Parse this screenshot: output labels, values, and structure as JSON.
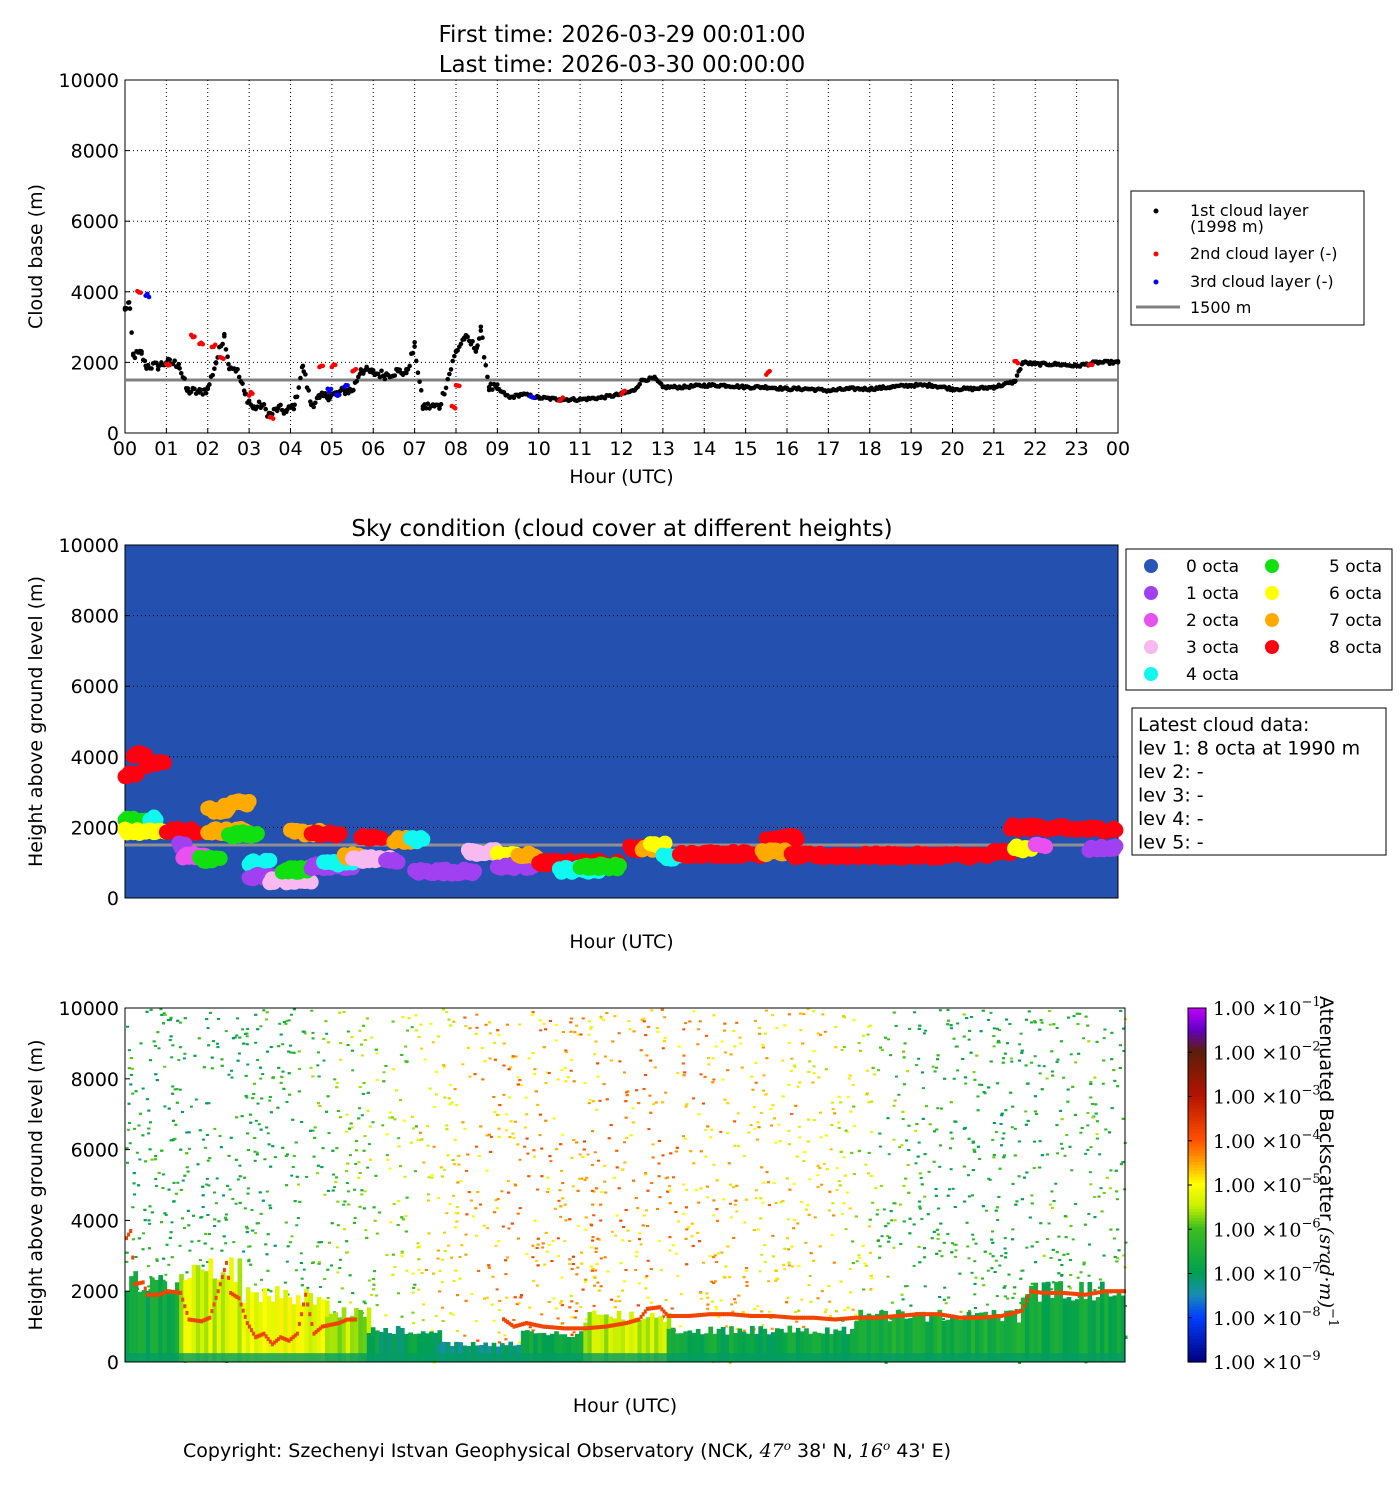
{
  "chart_data": [
    {
      "type": "scatter",
      "title": [
        "First time: 2026-03-29 00:01:00",
        "Last time: 2026-03-30 00:00:00"
      ],
      "xlabel": "Hour (UTC)",
      "ylabel": "Cloud base (m)",
      "xlim": [
        0,
        24
      ],
      "ylim": [
        0,
        10000
      ],
      "xticks": [
        "00",
        "01",
        "02",
        "03",
        "04",
        "05",
        "06",
        "07",
        "08",
        "09",
        "10",
        "11",
        "12",
        "13",
        "14",
        "15",
        "16",
        "17",
        "18",
        "19",
        "20",
        "21",
        "22",
        "23",
        "00"
      ],
      "yticks": [
        0,
        2000,
        4000,
        6000,
        8000,
        10000
      ],
      "grid": true,
      "legend_position": "right",
      "reference_line": {
        "label": "1500 m",
        "value": 1500,
        "color": "#808080"
      },
      "series": [
        {
          "name": "1st cloud layer",
          "name2": "(1998 m)",
          "color": "#000000",
          "points": [
            [
              0,
              3500
            ],
            [
              0.1,
              3700
            ],
            [
              0.2,
              2200
            ],
            [
              0.4,
              2250
            ],
            [
              0.5,
              1900
            ],
            [
              0.8,
              1900
            ],
            [
              1.0,
              2000
            ],
            [
              1.3,
              1950
            ],
            [
              1.5,
              1200
            ],
            [
              1.8,
              1150
            ],
            [
              2.0,
              1250
            ],
            [
              2.2,
              2000
            ],
            [
              2.4,
              2800
            ],
            [
              2.5,
              1950
            ],
            [
              2.7,
              1800
            ],
            [
              2.9,
              1100
            ],
            [
              3.1,
              700
            ],
            [
              3.3,
              800
            ],
            [
              3.5,
              500
            ],
            [
              3.7,
              700
            ],
            [
              3.9,
              600
            ],
            [
              4.1,
              800
            ],
            [
              4.3,
              1900
            ],
            [
              4.5,
              800
            ],
            [
              4.7,
              1000
            ],
            [
              4.9,
              1050
            ],
            [
              5.1,
              1100
            ],
            [
              5.3,
              1200
            ],
            [
              5.5,
              1200
            ],
            [
              5.7,
              1800
            ],
            [
              6.0,
              1700
            ],
            [
              6.3,
              1650
            ],
            [
              6.6,
              1750
            ],
            [
              6.8,
              1700
            ],
            [
              7.0,
              2450
            ],
            [
              7.2,
              750
            ],
            [
              7.6,
              750
            ],
            [
              8.0,
              2300
            ],
            [
              8.2,
              2700
            ],
            [
              8.5,
              2400
            ],
            [
              8.6,
              2900
            ],
            [
              8.8,
              1300
            ],
            [
              9.0,
              1250
            ],
            [
              9.3,
              1000
            ],
            [
              9.6,
              1100
            ],
            [
              10,
              1000
            ],
            [
              10.5,
              950
            ],
            [
              11,
              950
            ],
            [
              11.5,
              1000
            ],
            [
              12,
              1100
            ],
            [
              12.3,
              1200
            ],
            [
              12.5,
              1500
            ],
            [
              12.8,
              1550
            ],
            [
              13,
              1300
            ],
            [
              13.5,
              1300
            ],
            [
              14,
              1350
            ],
            [
              14.5,
              1350
            ],
            [
              15,
              1300
            ],
            [
              15.5,
              1300
            ],
            [
              16,
              1250
            ],
            [
              16.5,
              1250
            ],
            [
              17,
              1200
            ],
            [
              17.5,
              1250
            ],
            [
              18,
              1250
            ],
            [
              18.5,
              1300
            ],
            [
              19,
              1350
            ],
            [
              19.5,
              1350
            ],
            [
              20,
              1250
            ],
            [
              20.5,
              1250
            ],
            [
              21,
              1300
            ],
            [
              21.5,
              1450
            ],
            [
              21.7,
              2000
            ],
            [
              22,
              1950
            ],
            [
              22.5,
              1950
            ],
            [
              23,
              1900
            ],
            [
              23.5,
              2000
            ],
            [
              24,
              2000
            ]
          ]
        },
        {
          "name": "2nd cloud layer (-)",
          "color": "#ff0000",
          "points": [
            [
              0.3,
              4000
            ],
            [
              1.0,
              1900
            ],
            [
              1.6,
              2750
            ],
            [
              1.8,
              2500
            ],
            [
              2.1,
              2450
            ],
            [
              2.3,
              2100
            ],
            [
              3.0,
              1100
            ],
            [
              3.5,
              450
            ],
            [
              4.7,
              1850
            ],
            [
              5.0,
              1900
            ],
            [
              5.5,
              1800
            ],
            [
              7.9,
              750
            ],
            [
              8.0,
              1350
            ],
            [
              10.5,
              950
            ],
            [
              12,
              1150
            ],
            [
              15.5,
              1700
            ],
            [
              21.5,
              2000
            ],
            [
              23.3,
              1950
            ]
          ]
        },
        {
          "name": "3rd cloud layer (-)",
          "color": "#0000ff",
          "points": [
            [
              0.5,
              3900
            ],
            [
              4.9,
              1200
            ],
            [
              5.1,
              1050
            ],
            [
              5.3,
              1300
            ],
            [
              9.8,
              1050
            ]
          ]
        }
      ]
    },
    {
      "type": "scatter",
      "title": "Sky condition (cloud cover at different heights)",
      "xlabel": "Hour (UTC)",
      "ylabel": "Height above ground level (m)",
      "xlim": [
        0,
        24
      ],
      "ylim": [
        0,
        10000
      ],
      "background": "#2450b0",
      "octa_colors": [
        "#2a55b8",
        "#a040f0",
        "#e850f0",
        "#f8b8f0",
        "#10f8f0",
        "#10e010",
        "#ffff00",
        "#ffaa00",
        "#ff0010"
      ],
      "legend": [
        "0 octa",
        "1 octa",
        "2 octa",
        "3 octa",
        "4 octa",
        "5 octa",
        "6 octa",
        "7 octa",
        "8 octa"
      ],
      "info_box": [
        "Latest cloud data:",
        "lev 1: 8 octa at 1990 m",
        "lev 2: -",
        "lev 3: -",
        "lev 4: -",
        "lev 5: -"
      ],
      "segments_columns": [
        "start_hour",
        "end_hour",
        "height_m",
        "octa"
      ],
      "segments": [
        [
          0,
          0.3,
          3500,
          8
        ],
        [
          0.2,
          0.5,
          4050,
          8
        ],
        [
          0.5,
          1.0,
          3800,
          8
        ],
        [
          0,
          0.5,
          2200,
          5
        ],
        [
          0.6,
          0.8,
          2250,
          4
        ],
        [
          0,
          1,
          1900,
          6
        ],
        [
          1,
          1.8,
          1900,
          8
        ],
        [
          1.3,
          1.5,
          1500,
          1
        ],
        [
          1.4,
          2.0,
          1200,
          2
        ],
        [
          1.8,
          2.3,
          1100,
          5
        ],
        [
          2.0,
          2.5,
          2500,
          7
        ],
        [
          2.4,
          3.0,
          2700,
          7
        ],
        [
          2.0,
          3.0,
          1900,
          7
        ],
        [
          2.5,
          3.2,
          1800,
          5
        ],
        [
          3.0,
          3.5,
          1000,
          4
        ],
        [
          3.0,
          4.0,
          600,
          1
        ],
        [
          3.5,
          4.5,
          500,
          3
        ],
        [
          3.8,
          4.5,
          800,
          5
        ],
        [
          4.0,
          4.8,
          1850,
          7
        ],
        [
          4.5,
          5.2,
          1800,
          8
        ],
        [
          4.5,
          5.5,
          900,
          1
        ],
        [
          4.8,
          5.5,
          1000,
          4
        ],
        [
          5.3,
          5.7,
          1200,
          7
        ],
        [
          5.7,
          6.2,
          1700,
          8
        ],
        [
          5.5,
          6.4,
          1100,
          3
        ],
        [
          6.3,
          6.6,
          1050,
          1
        ],
        [
          6.5,
          7.0,
          1650,
          7
        ],
        [
          6.9,
          7.2,
          1650,
          4
        ],
        [
          7.0,
          8.0,
          750,
          1
        ],
        [
          8.0,
          8.5,
          750,
          1
        ],
        [
          8.3,
          9.0,
          1300,
          3
        ],
        [
          9.0,
          9.5,
          1200,
          6
        ],
        [
          9.0,
          10,
          900,
          1
        ],
        [
          9.5,
          10,
          1200,
          7
        ],
        [
          10,
          12,
          1000,
          8
        ],
        [
          10.5,
          11.5,
          800,
          4
        ],
        [
          11,
          12,
          900,
          5
        ],
        [
          12.2,
          12.5,
          1400,
          8
        ],
        [
          12.5,
          13,
          1400,
          7
        ],
        [
          12.7,
          13.1,
          1500,
          6
        ],
        [
          13,
          13.5,
          1150,
          4
        ],
        [
          13.4,
          15.5,
          1250,
          8
        ],
        [
          15.5,
          16.3,
          1700,
          8
        ],
        [
          15.4,
          16.0,
          1300,
          7
        ],
        [
          16.1,
          21,
          1200,
          8
        ],
        [
          21,
          21.5,
          1300,
          8
        ],
        [
          21.4,
          22.8,
          2000,
          8
        ],
        [
          21.5,
          22.0,
          1400,
          6
        ],
        [
          22.0,
          22.3,
          1450,
          2
        ],
        [
          22.8,
          24,
          1950,
          8
        ],
        [
          23.3,
          24,
          1400,
          1
        ]
      ]
    },
    {
      "type": "heatmap",
      "xlabel": "Hour (UTC)",
      "ylabel": "Height above ground level (m)",
      "xlim": [
        0,
        24
      ],
      "ylim": [
        0,
        10000
      ],
      "colorbar_label": "Attenuated Backscatter ",
      "colorbar_units": "(srad·m)",
      "colorbar_units_exp": "−1",
      "colorbar_ticks": [
        -9,
        -8,
        -7,
        -6,
        -5,
        -4,
        -3,
        -2,
        -1
      ],
      "colorbar_tick_mantissa": "1.00 ×10",
      "hourly_background_log10": [
        -6.5,
        -6.6,
        -6.6,
        -6.5,
        -6.3,
        -6.0,
        -5.6,
        -5.0,
        -4.6,
        -4.4,
        -4.4,
        -4.5,
        -4.5,
        -4.6,
        -4.7,
        -4.8,
        -5.0,
        -5.3,
        -6.2,
        -6.4,
        -6.4,
        -6.5,
        -6.3,
        -6.2
      ],
      "boundary_layer_columns": [
        "start_hour",
        "end_hour",
        "top_m",
        "log10"
      ],
      "boundary_layer": [
        [
          0,
          1.3,
          2300,
          -6.8
        ],
        [
          1.3,
          2.8,
          2600,
          -5.4
        ],
        [
          2.8,
          4.8,
          1900,
          -5.2
        ],
        [
          4.8,
          5.8,
          1400,
          -5.6
        ],
        [
          5.8,
          7.5,
          900,
          -7.0
        ],
        [
          7.5,
          9.5,
          500,
          -7.2
        ],
        [
          9.5,
          11,
          800,
          -6.8
        ],
        [
          11,
          13,
          1300,
          -5.5
        ],
        [
          13,
          17.5,
          900,
          -6.8
        ],
        [
          17.5,
          21.5,
          1300,
          -6.6
        ],
        [
          21.5,
          24,
          2000,
          -6.7
        ]
      ]
    }
  ],
  "footer": {
    "text": "Copyright: Szechenyi Istvan Geophysical Observatory (NCK, ",
    "lat": "47",
    "lat_min": " 38' N, ",
    "lon": "16",
    "lon_min": " 43' E)",
    "deg": "o"
  }
}
